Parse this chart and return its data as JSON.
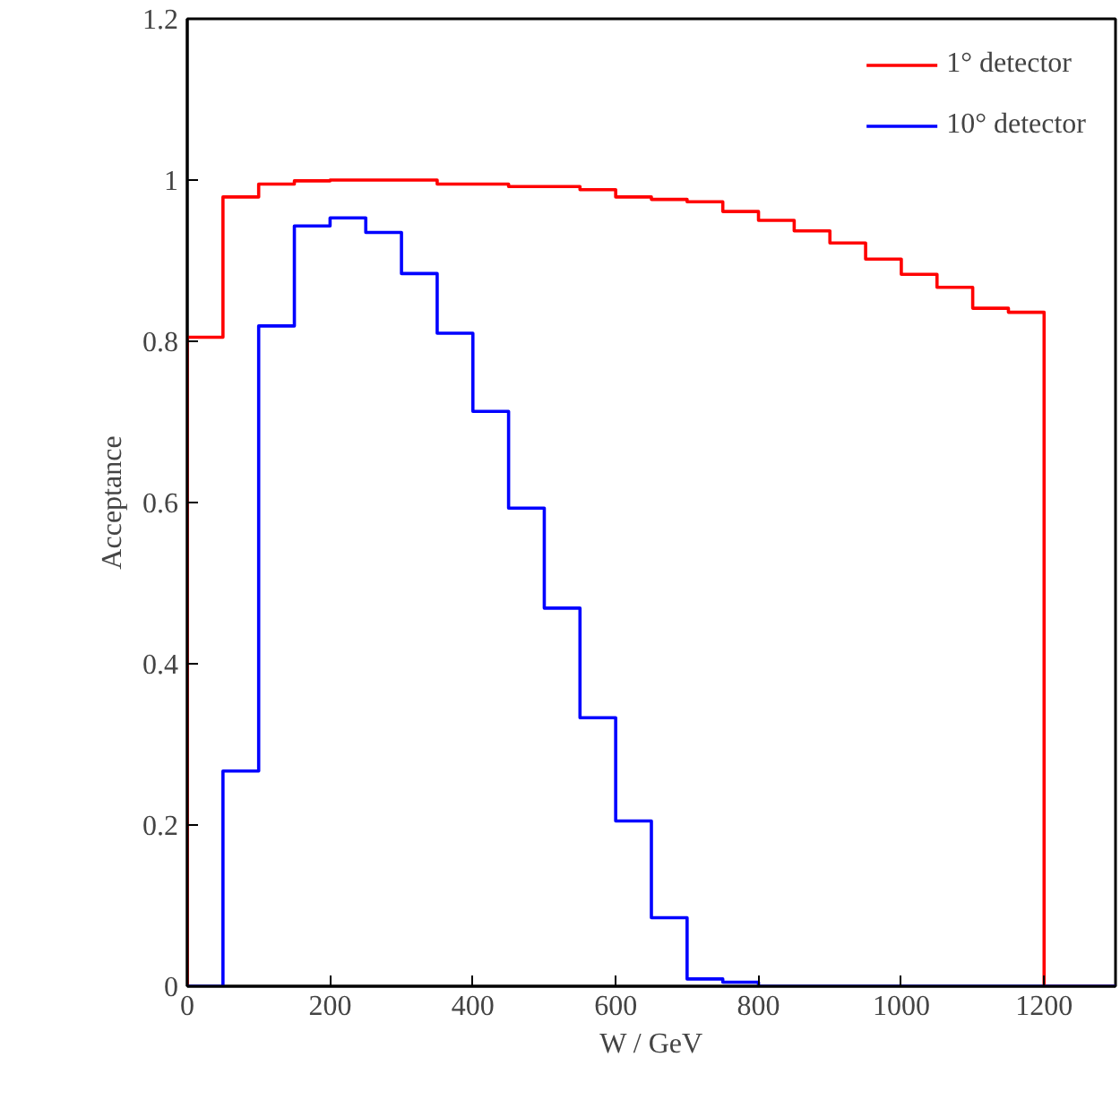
{
  "chart_data": {
    "type": "histogram",
    "xlabel": "W / GeV",
    "ylabel": "Acceptance",
    "bins": [
      0,
      50,
      100,
      150,
      200,
      250,
      300,
      350,
      400,
      450,
      500,
      550,
      600,
      650,
      700,
      750,
      800,
      850,
      900,
      950,
      1000,
      1050,
      1100,
      1150,
      1200,
      1250,
      1300
    ],
    "series": [
      {
        "name": "1° detector",
        "color": "#ff0000",
        "values": [
          0.805,
          0.979,
          0.995,
          0.999,
          1.0,
          1.0,
          1.0,
          0.995,
          0.995,
          0.992,
          0.992,
          0.988,
          0.979,
          0.976,
          0.973,
          0.961,
          0.95,
          0.937,
          0.922,
          0.902,
          0.883,
          0.867,
          0.841,
          0.836,
          0,
          0
        ]
      },
      {
        "name": "10° detector",
        "color": "#0000ff",
        "values": [
          0,
          0.267,
          0.819,
          0.943,
          0.953,
          0.935,
          0.884,
          0.81,
          0.713,
          0.593,
          0.469,
          0.333,
          0.205,
          0.085,
          0.009,
          0.005,
          0,
          0,
          0,
          0,
          0,
          0,
          0,
          0,
          0,
          0
        ]
      }
    ],
    "xlim": [
      0,
      1300
    ],
    "ylim": [
      0,
      1.2
    ],
    "xticks": [
      0,
      200,
      400,
      600,
      800,
      1000,
      1200
    ],
    "yticks": [
      0,
      0.2,
      0.4,
      0.6,
      0.8,
      1,
      1.2
    ],
    "legend": "top right",
    "grid": false
  }
}
